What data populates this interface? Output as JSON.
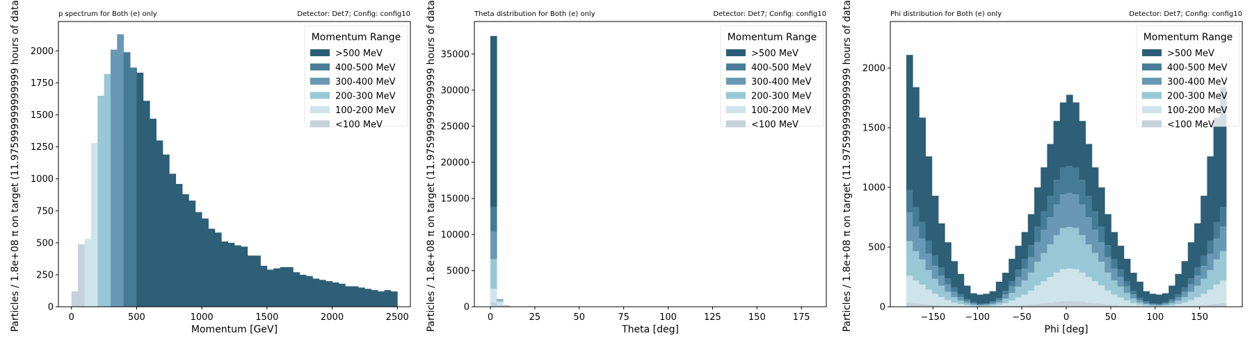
{
  "colors": {
    "gt500": "#2d5f76",
    "r400_500": "#467b96",
    "r300_400": "#6898b3",
    "r200_300": "#98c8d6",
    "r100_200": "#cfe4ea",
    "lt100": "#c5d2dc"
  },
  "chart_data": [
    {
      "type": "bar",
      "stacked": false,
      "title": "p spectrum for Both (e) only",
      "title_right": "Detector: Det7; Config: config10",
      "xlabel": "Momentum [GeV]",
      "ylabel": "Particles / 1.8e+08 π on target (11.975999999999999 hours of data)",
      "xlim": [
        -100,
        2600
      ],
      "ylim": [
        0,
        2230
      ],
      "xticks": [
        0,
        500,
        1000,
        1500,
        2000,
        2500
      ],
      "yticks": [
        0,
        250,
        500,
        750,
        1000,
        1250,
        1500,
        1750,
        2000
      ],
      "legend_title": "Momentum Range",
      "legend_position": "top-right",
      "legend_entries": [
        ">500 MeV",
        "400-500 MeV",
        "300-400 MeV",
        "200-300 MeV",
        "100-200 MeV",
        "<100 MeV"
      ],
      "bin_width": 50,
      "bin_start": 0,
      "bin_range_index": [
        5,
        5,
        4,
        4,
        3,
        3,
        2,
        2,
        1,
        1,
        0,
        0,
        0,
        0,
        0,
        0,
        0,
        0,
        0,
        0,
        0,
        0,
        0,
        0,
        0,
        0,
        0,
        0,
        0,
        0,
        0,
        0,
        0,
        0,
        0,
        0,
        0,
        0,
        0,
        0,
        0,
        0,
        0,
        0,
        0,
        0,
        0,
        0,
        0,
        0
      ],
      "values": [
        120,
        490,
        530,
        1280,
        1650,
        1820,
        2010,
        2130,
        1990,
        1870,
        1830,
        1610,
        1470,
        1300,
        1190,
        1040,
        960,
        880,
        830,
        740,
        690,
        610,
        580,
        510,
        500,
        480,
        470,
        400,
        400,
        320,
        290,
        300,
        310,
        310,
        270,
        250,
        240,
        220,
        210,
        200,
        190,
        180,
        160,
        160,
        150,
        140,
        130,
        120,
        130,
        120
      ]
    },
    {
      "type": "bar",
      "stacked": true,
      "title": "Theta distribution for Both (e) only",
      "title_right": "Detector: Det7; Config: config10",
      "xlabel": "Theta [deg]",
      "ylabel": "Particles / 1.8e+08 π on target (11.975999999999999 hours of data)",
      "xlim": [
        -9,
        189
      ],
      "ylim": [
        0,
        39500
      ],
      "xticks": [
        0,
        25,
        50,
        75,
        100,
        125,
        150,
        175
      ],
      "yticks": [
        0,
        5000,
        10000,
        15000,
        20000,
        25000,
        30000,
        35000
      ],
      "legend_title": "Momentum Range",
      "legend_position": "top-right",
      "bin_width": 3.6,
      "bin_start": 0,
      "series": [
        {
          "name": "<100 MeV",
          "values": [
            600,
            200,
            30
          ]
        },
        {
          "name": "100-200 MeV",
          "values": [
            1900,
            450,
            60
          ]
        },
        {
          "name": "200-300 MeV",
          "values": [
            4100,
            250,
            50
          ]
        },
        {
          "name": "300-400 MeV",
          "values": [
            3800,
            60,
            20
          ]
        },
        {
          "name": "400-500 MeV",
          "values": [
            3400,
            30,
            10
          ]
        },
        {
          "name": ">500 MeV",
          "values": [
            23700,
            40,
            10
          ]
        }
      ]
    },
    {
      "type": "bar",
      "stacked": true,
      "title": "Phi distribution for Both (e) only",
      "title_right": "Detector: Det7; Config: config10",
      "xlabel": "Phi [deg]",
      "ylabel": "Particles / 1.8e+08 π on target (11.975999999999999 hours of data)",
      "xlim": [
        -198,
        198
      ],
      "ylim": [
        0,
        2390
      ],
      "xticks": [
        -150,
        -100,
        -50,
        0,
        50,
        100,
        150
      ],
      "yticks": [
        0,
        500,
        1000,
        1500,
        2000
      ],
      "legend_title": "Momentum Range",
      "legend_position": "top-right",
      "bin_width": 7.2,
      "bin_start": -180,
      "series": [
        {
          "name": "<100 MeV",
          "values": [
            36,
            30,
            25,
            19,
            14,
            10,
            7,
            4,
            2,
            1,
            1,
            0,
            1,
            1,
            2,
            4,
            7,
            10,
            14,
            19,
            25,
            30,
            36,
            43,
            47,
            50,
            47,
            43,
            36,
            30,
            25,
            19,
            14,
            10,
            7,
            4,
            2,
            1,
            1,
            0,
            1,
            1,
            2,
            4,
            7,
            10,
            14,
            19,
            25,
            30
          ]
        },
        {
          "name": "100-200 MeV",
          "values": [
            224,
            189,
            161,
            124,
            94,
            70,
            49,
            31,
            20,
            11,
            6,
            4,
            5,
            8,
            14,
            26,
            45,
            67,
            88,
            116,
            154,
            184,
            213,
            244,
            268,
            270,
            268,
            244,
            213,
            184,
            154,
            116,
            88,
            67,
            45,
            26,
            14,
            8,
            5,
            4,
            6,
            11,
            20,
            31,
            49,
            70,
            94,
            124,
            161,
            189
          ]
        },
        {
          "name": "200-300 MeV",
          "values": [
            290,
            247,
            210,
            164,
            126,
            96,
            69,
            46,
            30,
            18,
            10,
            7,
            8,
            13,
            21,
            38,
            63,
            92,
            118,
            152,
            198,
            236,
            274,
            313,
            344,
            348,
            344,
            313,
            274,
            236,
            198,
            152,
            118,
            92,
            63,
            38,
            21,
            13,
            8,
            7,
            10,
            18,
            30,
            46,
            69,
            96,
            126,
            164,
            210,
            247
          ]
        },
        {
          "name": "300-400 MeV",
          "values": [
            240,
            205,
            175,
            138,
            108,
            84,
            62,
            43,
            29,
            18,
            11,
            7,
            8,
            13,
            20,
            35,
            55,
            79,
            100,
            127,
            164,
            195,
            226,
            258,
            282,
            286,
            282,
            258,
            226,
            195,
            164,
            127,
            100,
            79,
            55,
            35,
            20,
            13,
            8,
            7,
            11,
            18,
            29,
            43,
            62,
            84,
            108,
            138,
            175,
            205
          ]
        },
        {
          "name": "400-500 MeV",
          "values": [
            190,
            163,
            139,
            110,
            86,
            67,
            50,
            35,
            24,
            15,
            9,
            6,
            7,
            11,
            17,
            29,
            45,
            64,
            81,
            102,
            131,
            155,
            179,
            204,
            223,
            226,
            223,
            204,
            179,
            155,
            131,
            102,
            81,
            64,
            45,
            29,
            17,
            11,
            7,
            6,
            9,
            15,
            24,
            35,
            50,
            67,
            86,
            110,
            139,
            163
          ]
        },
        {
          "name": ">500 MeV",
          "values": [
            1130,
            1006,
            875,
            705,
            502,
            372,
            303,
            223,
            170,
            114,
            76,
            78,
            80,
            84,
            136,
            153,
            187,
            199,
            225,
            260,
            328,
            368,
            436,
            495,
            548,
            596,
            548,
            495,
            436,
            368,
            328,
            260,
            225,
            199,
            187,
            153,
            136,
            84,
            80,
            78,
            76,
            114,
            170,
            223,
            303,
            372,
            502,
            705,
            875,
            1006
          ]
        }
      ]
    }
  ]
}
